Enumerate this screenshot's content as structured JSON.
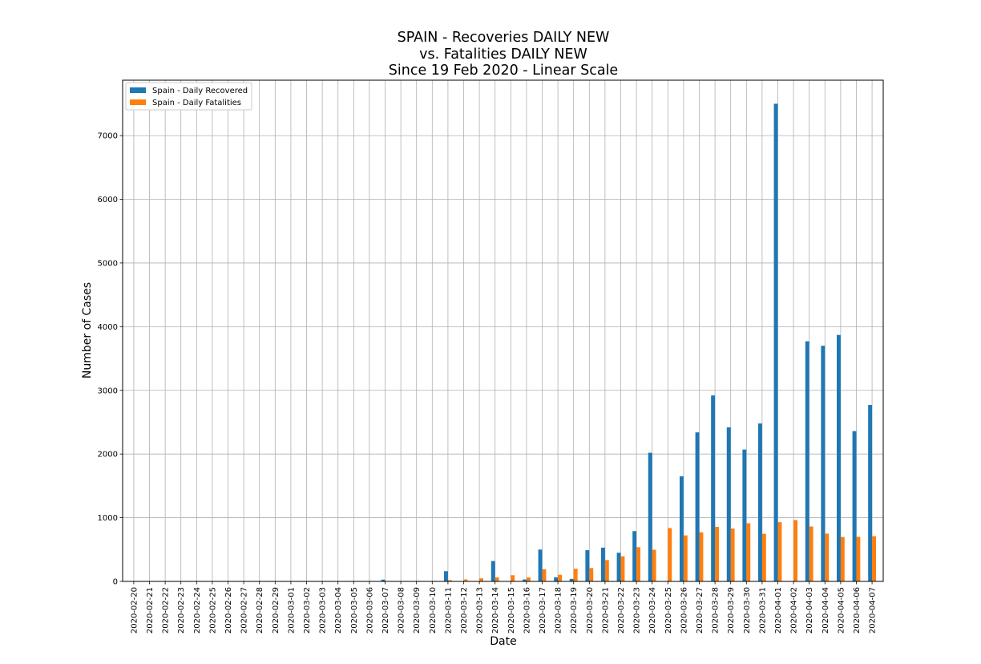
{
  "colors": {
    "recovered": "#1f77b4",
    "fatalities": "#ff7f0e",
    "grid": "#b0b0b0"
  },
  "chart_data": {
    "type": "bar",
    "title": [
      "SPAIN - Recoveries DAILY NEW",
      "vs. Fatalities DAILY NEW",
      "Since 19 Feb 2020 - Linear Scale"
    ],
    "xlabel": "Date",
    "ylabel": "Number of Cases",
    "ylim": [
      0,
      7870
    ],
    "yticks": [
      0,
      1000,
      2000,
      3000,
      4000,
      5000,
      6000,
      7000
    ],
    "grid": true,
    "legend_position": "top-left",
    "categories": [
      "2020-02-20",
      "2020-02-21",
      "2020-02-22",
      "2020-02-23",
      "2020-02-24",
      "2020-02-25",
      "2020-02-26",
      "2020-02-27",
      "2020-02-28",
      "2020-02-29",
      "2020-03-01",
      "2020-03-02",
      "2020-03-03",
      "2020-03-04",
      "2020-03-05",
      "2020-03-06",
      "2020-03-07",
      "2020-03-08",
      "2020-03-09",
      "2020-03-10",
      "2020-03-11",
      "2020-03-12",
      "2020-03-13",
      "2020-03-14",
      "2020-03-15",
      "2020-03-16",
      "2020-03-17",
      "2020-03-18",
      "2020-03-19",
      "2020-03-20",
      "2020-03-21",
      "2020-03-22",
      "2020-03-23",
      "2020-03-24",
      "2020-03-25",
      "2020-03-26",
      "2020-03-27",
      "2020-03-28",
      "2020-03-29",
      "2020-03-30",
      "2020-03-31",
      "2020-04-01",
      "2020-04-02",
      "2020-04-03",
      "2020-04-04",
      "2020-04-05",
      "2020-04-06",
      "2020-04-07"
    ],
    "series": [
      {
        "name": "Spain - Daily Recovered",
        "values": [
          0,
          0,
          0,
          0,
          0,
          0,
          0,
          0,
          0,
          0,
          0,
          0,
          0,
          0,
          0,
          0,
          28,
          0,
          2,
          0,
          160,
          0,
          0,
          320,
          0,
          30,
          500,
          64,
          40,
          490,
          530,
          450,
          790,
          2020,
          0,
          1650,
          2340,
          2920,
          2420,
          2070,
          2480,
          7500,
          0,
          3770,
          3700,
          3870,
          2360,
          2770
        ]
      },
      {
        "name": "Spain - Daily Fatalities",
        "values": [
          0,
          0,
          0,
          0,
          0,
          0,
          0,
          0,
          0,
          0,
          0,
          0,
          1,
          2,
          0,
          3,
          5,
          7,
          7,
          8,
          20,
          31,
          48,
          62,
          97,
          62,
          191,
          105,
          199,
          210,
          335,
          394,
          537,
          497,
          837,
          722,
          770,
          856,
          830,
          913,
          747,
          930,
          963,
          862,
          750,
          697,
          700,
          710
        ]
      }
    ]
  }
}
